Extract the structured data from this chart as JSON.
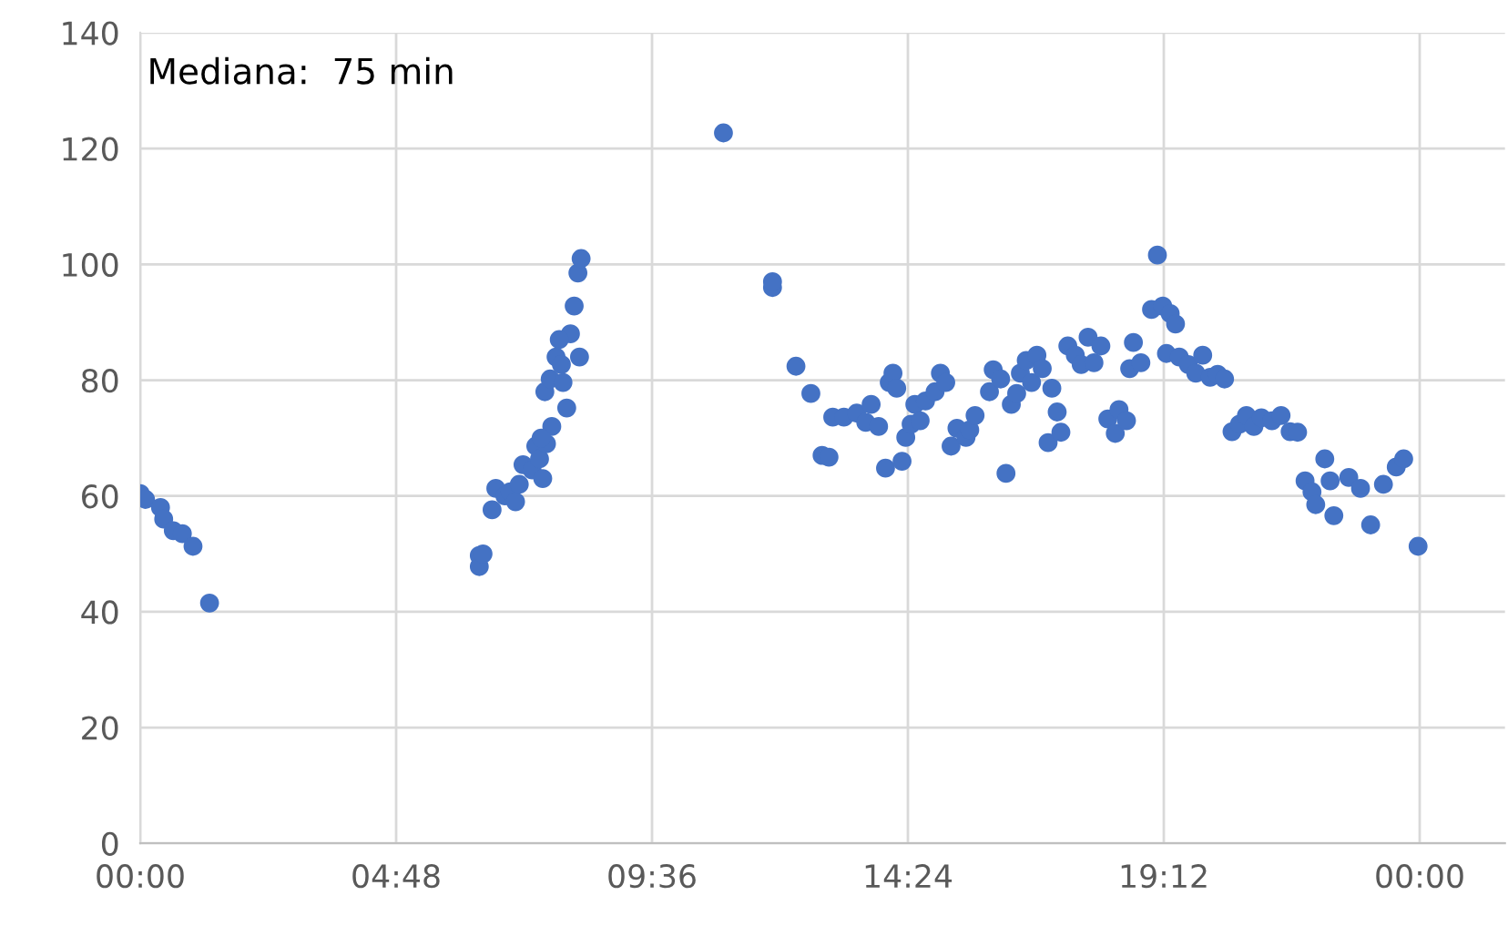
{
  "chart_data": {
    "type": "scatter",
    "annotations": [
      "Mediana:  75 min"
    ],
    "xlim": [
      0,
      25.6
    ],
    "ylim": [
      0,
      140
    ],
    "xticks": [
      {
        "value": 0,
        "label": "00:00"
      },
      {
        "value": 4.8,
        "label": "04:48"
      },
      {
        "value": 9.6,
        "label": "09:36"
      },
      {
        "value": 14.4,
        "label": "14:24"
      },
      {
        "value": 19.2,
        "label": "19:12"
      },
      {
        "value": 24,
        "label": "00:00"
      }
    ],
    "yticks": [
      0,
      20,
      40,
      60,
      80,
      100,
      120,
      140
    ],
    "grid": true,
    "marker": "circle",
    "series": [
      {
        "color": "#4472c4",
        "x": [
          0,
          0.1,
          0.38,
          0.44,
          0.62,
          0.79,
          0.99,
          1.3,
          6.36,
          6.36,
          6.43,
          6.6,
          6.67,
          6.84,
          6.94,
          7.04,
          7.11,
          7.18,
          7.35,
          7.42,
          7.49,
          7.62,
          7.72,
          7.55,
          7.52,
          7.59,
          7.69,
          7.8,
          7.9,
          8.0,
          8.07,
          8.14,
          8.21,
          8.27,
          8.24,
          7.93,
          7.86,
          10.94,
          11.86,
          11.86,
          12.3,
          12.58,
          12.79,
          12.92,
          12.99,
          13.2,
          13.44,
          13.61,
          13.71,
          13.85,
          13.98,
          14.05,
          14.12,
          14.19,
          14.29,
          14.36,
          14.46,
          14.53,
          14.63,
          14.73,
          14.91,
          15.01,
          15.11,
          15.21,
          15.32,
          15.49,
          15.56,
          15.66,
          15.93,
          16.0,
          16.14,
          16.24,
          16.34,
          16.44,
          16.51,
          16.62,
          16.72,
          16.82,
          16.92,
          17.03,
          17.1,
          17.2,
          17.27,
          17.4,
          17.54,
          17.65,
          17.78,
          17.89,
          18.02,
          18.15,
          18.29,
          18.36,
          18.5,
          18.56,
          18.63,
          18.77,
          18.97,
          19.08,
          19.18,
          19.32,
          19.42,
          19.25,
          19.49,
          19.66,
          19.8,
          19.93,
          20.07,
          20.21,
          20.34,
          20.48,
          20.62,
          20.75,
          20.89,
          21.03,
          21.23,
          21.4,
          21.57,
          21.71,
          21.85,
          21.98,
          22.05,
          22.22,
          22.32,
          22.39,
          22.67,
          22.89,
          23.08,
          23.32,
          23.56,
          23.7,
          23.97
        ],
        "values": [
          60.4,
          59.4,
          58,
          56,
          54,
          53.5,
          51.3,
          41.5,
          49.7,
          47.8,
          50,
          57.6,
          61.3,
          60,
          60.7,
          59,
          62,
          65.4,
          64.5,
          68.6,
          66.4,
          69,
          72,
          63,
          70,
          78,
          80.2,
          84,
          82.7,
          75.2,
          88,
          92.8,
          98.5,
          101,
          84,
          79.6,
          87,
          122.7,
          96,
          97,
          82.4,
          77.7,
          67,
          66.7,
          73.6,
          73.6,
          74.3,
          72.7,
          75.8,
          72,
          64.8,
          79.6,
          81.2,
          78.6,
          66,
          70.1,
          72.4,
          75.8,
          73,
          76.4,
          78,
          81.2,
          79.6,
          68.6,
          71.7,
          70.1,
          71.4,
          73.9,
          78,
          81.8,
          80.2,
          63.9,
          75.8,
          77.7,
          81.2,
          83.4,
          79.6,
          84.3,
          82,
          69.2,
          78.6,
          74.5,
          71,
          85.9,
          84.3,
          82.7,
          87.4,
          83,
          85.9,
          73.3,
          70.8,
          74.9,
          73,
          82,
          86.5,
          83,
          92.2,
          101.6,
          92.8,
          91.5,
          89.7,
          84.6,
          84,
          82.7,
          81.2,
          84.3,
          80.5,
          81,
          80.2,
          71.1,
          72.4,
          73.9,
          72,
          73.5,
          73,
          73.9,
          71.1,
          71,
          62.6,
          60.7,
          58.5,
          66.4,
          62.6,
          56.6,
          63.2,
          61.3,
          55,
          62,
          65,
          66.4,
          51.3
        ]
      }
    ]
  }
}
